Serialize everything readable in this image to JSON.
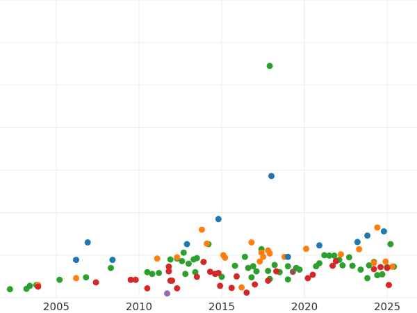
{
  "chart_data": {
    "type": "scatter",
    "title": "",
    "xlabel": "",
    "ylabel": "",
    "grid": true,
    "legend": "none",
    "xlim": [
      2001.6,
      2026.8
    ],
    "ylim": [
      0,
      70
    ],
    "x_ticks": [
      2005,
      2010,
      2015,
      2020,
      2025
    ],
    "x_tick_labels": [
      "2005",
      "2010",
      "2015",
      "2020",
      "2025"
    ],
    "y_ticks": [
      0,
      10,
      20,
      30,
      40,
      50,
      60,
      70
    ],
    "y_tick_labels": [],
    "series": [
      {
        "color": "#2ca02c",
        "points": [
          [
            2002.2,
            2.0
          ],
          [
            2003.2,
            2.1
          ],
          [
            2003.4,
            2.8
          ],
          [
            2003.8,
            3.0
          ],
          [
            2005.2,
            4.2
          ],
          [
            2006.8,
            4.8
          ],
          [
            2008.3,
            7.0
          ],
          [
            2010.5,
            6.0
          ],
          [
            2010.8,
            5.6
          ],
          [
            2011.2,
            5.8
          ],
          [
            2011.9,
            9.0
          ],
          [
            2012.3,
            9.2
          ],
          [
            2012.6,
            8.6
          ],
          [
            2012.7,
            10.6
          ],
          [
            2012.8,
            5.6
          ],
          [
            2013.0,
            8.0
          ],
          [
            2013.3,
            9.0
          ],
          [
            2013.4,
            6.0
          ],
          [
            2013.5,
            9.3
          ],
          [
            2014.2,
            12.6
          ],
          [
            2015.0,
            4.9
          ],
          [
            2015.8,
            7.5
          ],
          [
            2016.4,
            9.6
          ],
          [
            2016.6,
            7.0
          ],
          [
            2016.8,
            4.8
          ],
          [
            2016.9,
            7.4
          ],
          [
            2017.1,
            6.2
          ],
          [
            2017.4,
            11.4
          ],
          [
            2017.8,
            6.3
          ],
          [
            2017.9,
            4.4
          ],
          [
            2017.9,
            54.5
          ],
          [
            2018.2,
            7.7
          ],
          [
            2018.5,
            6.0
          ],
          [
            2019.0,
            7.4
          ],
          [
            2019.0,
            4.3
          ],
          [
            2019.5,
            7.0
          ],
          [
            2019.7,
            6.6
          ],
          [
            2020.7,
            7.4
          ],
          [
            2020.9,
            8.1
          ],
          [
            2021.2,
            10.0
          ],
          [
            2021.5,
            9.9
          ],
          [
            2021.8,
            9.9
          ],
          [
            2022.1,
            8.9
          ],
          [
            2022.3,
            7.6
          ],
          [
            2022.7,
            9.5
          ],
          [
            2022.9,
            7.5
          ],
          [
            2023.4,
            6.6
          ],
          [
            2023.8,
            4.6
          ],
          [
            2023.9,
            7.6
          ],
          [
            2024.2,
            8.4
          ],
          [
            2024.4,
            5.3
          ],
          [
            2024.7,
            5.5
          ],
          [
            2025.0,
            7.2
          ],
          [
            2025.2,
            12.6
          ],
          [
            2025.4,
            7.3
          ]
        ]
      },
      {
        "color": "#ff7f0e",
        "points": [
          [
            2003.9,
            3.0
          ],
          [
            2006.2,
            4.6
          ],
          [
            2011.1,
            9.2
          ],
          [
            2012.3,
            9.5
          ],
          [
            2013.8,
            16.0
          ],
          [
            2014.1,
            12.7
          ],
          [
            2015.1,
            10.0
          ],
          [
            2015.2,
            9.4
          ],
          [
            2016.2,
            2.4
          ],
          [
            2016.8,
            13.0
          ],
          [
            2017.3,
            8.5
          ],
          [
            2017.4,
            10.6
          ],
          [
            2017.5,
            9.6
          ],
          [
            2017.8,
            11.1
          ],
          [
            2017.9,
            10.4
          ],
          [
            2018.8,
            9.6
          ],
          [
            2020.1,
            11.5
          ],
          [
            2022.2,
            10.2
          ],
          [
            2023.3,
            11.4
          ],
          [
            2024.2,
            8.2
          ],
          [
            2024.4,
            16.5
          ],
          [
            2024.9,
            8.5
          ],
          [
            2025.3,
            7.3
          ]
        ]
      },
      {
        "color": "#d62728",
        "points": [
          [
            2003.9,
            2.6
          ],
          [
            2007.4,
            3.6
          ],
          [
            2009.5,
            4.2
          ],
          [
            2009.8,
            4.2
          ],
          [
            2010.5,
            2.2
          ],
          [
            2011.8,
            7.3
          ],
          [
            2011.8,
            6.2
          ],
          [
            2011.9,
            4.0
          ],
          [
            2012.0,
            4.0
          ],
          [
            2012.3,
            2.2
          ],
          [
            2013.5,
            4.9
          ],
          [
            2013.9,
            8.4
          ],
          [
            2014.3,
            6.1
          ],
          [
            2014.6,
            5.6
          ],
          [
            2014.8,
            5.8
          ],
          [
            2014.9,
            2.8
          ],
          [
            2015.6,
            2.3
          ],
          [
            2015.9,
            5.0
          ],
          [
            2016.5,
            1.2
          ],
          [
            2017.0,
            3.1
          ],
          [
            2017.8,
            4.0
          ],
          [
            2018.3,
            6.2
          ],
          [
            2020.2,
            4.6
          ],
          [
            2020.5,
            5.4
          ],
          [
            2021.7,
            7.5
          ],
          [
            2021.9,
            8.6
          ],
          [
            2024.2,
            6.7
          ],
          [
            2024.6,
            7.2
          ],
          [
            2025.0,
            7.0
          ],
          [
            2025.1,
            3.0
          ]
        ]
      },
      {
        "color": "#1f77b4",
        "points": [
          [
            2006.2,
            8.9
          ],
          [
            2006.9,
            13.0
          ],
          [
            2008.4,
            8.9
          ],
          [
            2012.9,
            12.6
          ],
          [
            2014.8,
            18.5
          ],
          [
            2018.0,
            28.6
          ],
          [
            2019.0,
            9.6
          ],
          [
            2020.9,
            12.3
          ],
          [
            2023.2,
            13.1
          ],
          [
            2023.8,
            14.6
          ],
          [
            2024.8,
            15.6
          ]
        ]
      },
      {
        "color": "#9467bd",
        "points": [
          [
            2011.7,
            1.0
          ]
        ]
      },
      {
        "color": "#8c564b",
        "points": [
          [
            2019.3,
            6.1
          ]
        ]
      }
    ]
  }
}
